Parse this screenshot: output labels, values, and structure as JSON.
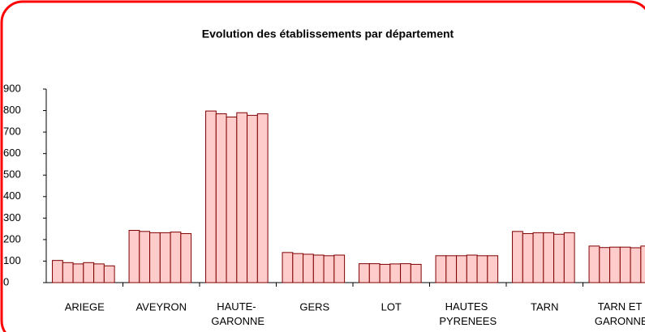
{
  "chart_data": {
    "type": "bar",
    "title": "Evolution des établissements par département",
    "categories": [
      "ARIEGE",
      "AVEYRON",
      "HAUTE-\nGARONNE",
      "GERS",
      "LOT",
      "HAUTES\nPYRENEES",
      "TARN",
      "TARN ET\nGARONNE"
    ],
    "series": [
      {
        "color": "#ffcccc",
        "values": [
          103,
          243,
          798,
          140,
          88,
          125,
          238,
          170
        ]
      },
      {
        "color": "#ffcccc",
        "values": [
          93,
          238,
          785,
          135,
          88,
          125,
          228,
          163
        ]
      },
      {
        "color": "#ffcccc",
        "values": [
          87,
          232,
          770,
          132,
          85,
          125,
          232,
          165
        ]
      },
      {
        "color": "#ffcccc",
        "values": [
          93,
          232,
          790,
          128,
          87,
          128,
          232,
          165
        ]
      },
      {
        "color": "#ffcccc",
        "values": [
          87,
          235,
          778,
          125,
          88,
          125,
          225,
          162
        ]
      },
      {
        "color": "#ffcccc",
        "values": [
          78,
          228,
          785,
          128,
          85,
          125,
          232,
          170
        ]
      }
    ],
    "ylim": [
      0,
      900
    ],
    "yticks": [
      0,
      100,
      200,
      300,
      400,
      500,
      600,
      700,
      800,
      900
    ],
    "grid": false
  }
}
